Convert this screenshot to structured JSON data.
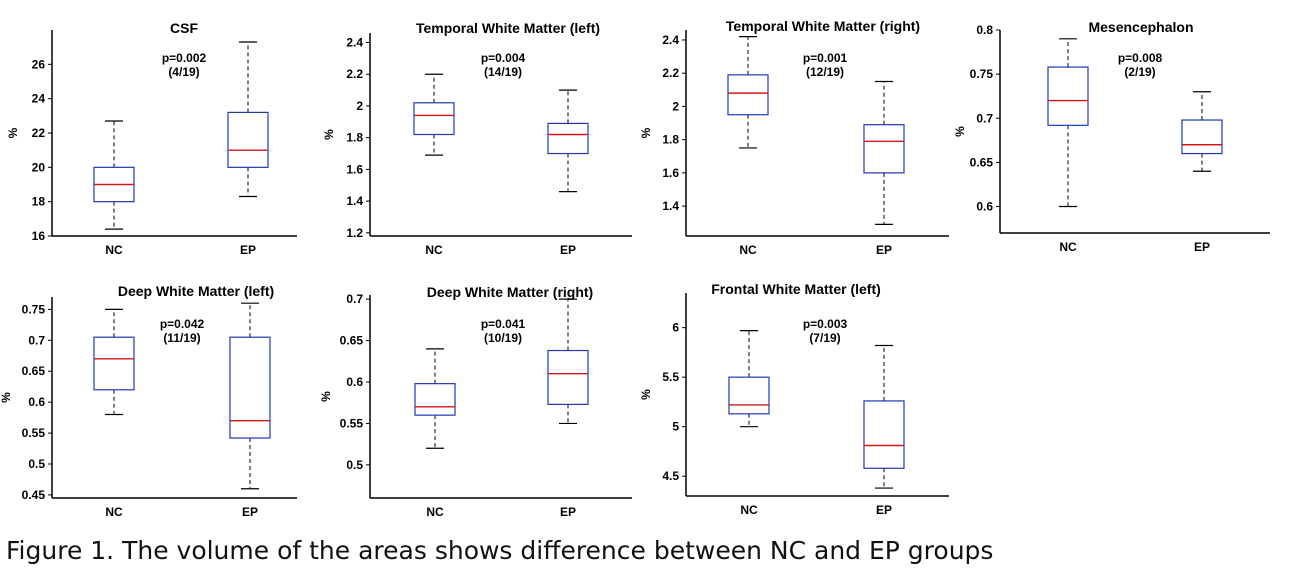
{
  "caption": "Figure 1. The volume of the areas shows difference between NC and EP groups",
  "colors": {
    "box": "#2038b0",
    "median": "#d01818",
    "axis": "#000000"
  },
  "chart_data": [
    {
      "type": "boxplot",
      "title": "CSF",
      "ylabel": "%",
      "categories": [
        "NC",
        "EP"
      ],
      "ylim": [
        16,
        28
      ],
      "yticks": [
        16,
        18,
        20,
        22,
        24,
        26
      ],
      "ytick_labels": [
        "16",
        "18",
        "20",
        "22",
        "24",
        "26"
      ],
      "annotation": [
        "p=0.002",
        "(4/19)"
      ],
      "boxes": [
        {
          "group": "NC",
          "min": 16.4,
          "q1": 18.0,
          "median": 19.0,
          "q3": 20.0,
          "max": 22.7
        },
        {
          "group": "EP",
          "min": 18.3,
          "q1": 20.0,
          "median": 21.0,
          "q3": 23.2,
          "max": 27.3
        }
      ]
    },
    {
      "type": "boxplot",
      "title": "Temporal White Matter (left)",
      "ylabel": "%",
      "categories": [
        "NC",
        "EP"
      ],
      "ylim": [
        1.18,
        2.46
      ],
      "yticks": [
        1.2,
        1.4,
        1.6,
        1.8,
        2.0,
        2.2,
        2.4
      ],
      "ytick_labels": [
        "1.2",
        "1.4",
        "1.6",
        "1.8",
        "2",
        "2.2",
        "2.4"
      ],
      "annotation": [
        "p=0.004",
        "(14/19)"
      ],
      "boxes": [
        {
          "group": "NC",
          "min": 1.69,
          "q1": 1.82,
          "median": 1.94,
          "q3": 2.02,
          "max": 2.2
        },
        {
          "group": "EP",
          "min": 1.46,
          "q1": 1.7,
          "median": 1.82,
          "q3": 1.89,
          "max": 2.1
        }
      ]
    },
    {
      "type": "boxplot",
      "title": "Temporal White Matter (right)",
      "ylabel": "%",
      "categories": [
        "NC",
        "EP"
      ],
      "ylim": [
        1.22,
        2.46
      ],
      "yticks": [
        1.4,
        1.6,
        1.8,
        2.0,
        2.2,
        2.4
      ],
      "ytick_labels": [
        "1.4",
        "1.6",
        "1.8",
        "2",
        "2.2",
        "2.4"
      ],
      "annotation": [
        "p=0.001",
        "(12/19)"
      ],
      "boxes": [
        {
          "group": "NC",
          "min": 1.75,
          "q1": 1.95,
          "median": 2.08,
          "q3": 2.19,
          "max": 2.42
        },
        {
          "group": "EP",
          "min": 1.29,
          "q1": 1.6,
          "median": 1.79,
          "q3": 1.89,
          "max": 2.15
        }
      ]
    },
    {
      "type": "boxplot",
      "title": "Mesencephalon",
      "ylabel": "%",
      "categories": [
        "NC",
        "EP"
      ],
      "ylim": [
        0.57,
        0.8
      ],
      "yticks": [
        0.6,
        0.65,
        0.7,
        0.75,
        0.8
      ],
      "ytick_labels": [
        "0.6",
        "0.65",
        "0.7",
        "0.75",
        "0.8"
      ],
      "annotation": [
        "p=0.008",
        "(2/19)"
      ],
      "boxes": [
        {
          "group": "NC",
          "min": 0.6,
          "q1": 0.692,
          "median": 0.72,
          "q3": 0.758,
          "max": 0.79
        },
        {
          "group": "EP",
          "min": 0.64,
          "q1": 0.66,
          "median": 0.67,
          "q3": 0.698,
          "max": 0.73
        }
      ]
    },
    {
      "type": "boxplot",
      "title": "Deep White Matter (left)",
      "ylabel": "%",
      "categories": [
        "NC",
        "EP"
      ],
      "ylim": [
        0.445,
        0.77
      ],
      "yticks": [
        0.45,
        0.5,
        0.55,
        0.6,
        0.65,
        0.7,
        0.75
      ],
      "ytick_labels": [
        "0.45",
        "0.5",
        "0.55",
        "0.6",
        "0.65",
        "0.7",
        "0.75"
      ],
      "annotation": [
        "p=0.042",
        "(11/19)"
      ],
      "boxes": [
        {
          "group": "NC",
          "min": 0.58,
          "q1": 0.62,
          "median": 0.67,
          "q3": 0.705,
          "max": 0.75
        },
        {
          "group": "EP",
          "min": 0.46,
          "q1": 0.542,
          "median": 0.57,
          "q3": 0.705,
          "max": 0.76
        }
      ]
    },
    {
      "type": "boxplot",
      "title": "Deep White Matter (right)",
      "ylabel": "%",
      "categories": [
        "NC",
        "EP"
      ],
      "ylim": [
        0.46,
        0.705
      ],
      "yticks": [
        0.5,
        0.55,
        0.6,
        0.65,
        0.7
      ],
      "ytick_labels": [
        "0.5",
        "0.55",
        "0.6",
        "0.65",
        "0.7"
      ],
      "annotation": [
        "p=0.041",
        "(10/19)"
      ],
      "boxes": [
        {
          "group": "NC",
          "min": 0.52,
          "q1": 0.56,
          "median": 0.57,
          "q3": 0.598,
          "max": 0.64
        },
        {
          "group": "EP",
          "min": 0.55,
          "q1": 0.573,
          "median": 0.61,
          "q3": 0.638,
          "max": 0.7
        }
      ]
    },
    {
      "type": "boxplot",
      "title": "Frontal White Matter (left)",
      "ylabel": "%",
      "categories": [
        "NC",
        "EP"
      ],
      "ylim": [
        4.3,
        6.35
      ],
      "yticks": [
        4.5,
        5.0,
        5.5,
        6.0
      ],
      "ytick_labels": [
        "4.5",
        "5",
        "5.5",
        "6"
      ],
      "annotation": [
        "p=0.003",
        "(7/19)"
      ],
      "boxes": [
        {
          "group": "NC",
          "min": 5.0,
          "q1": 5.13,
          "median": 5.22,
          "q3": 5.5,
          "max": 5.97
        },
        {
          "group": "EP",
          "min": 4.38,
          "q1": 4.58,
          "median": 4.81,
          "q3": 5.26,
          "max": 5.82
        }
      ]
    }
  ]
}
